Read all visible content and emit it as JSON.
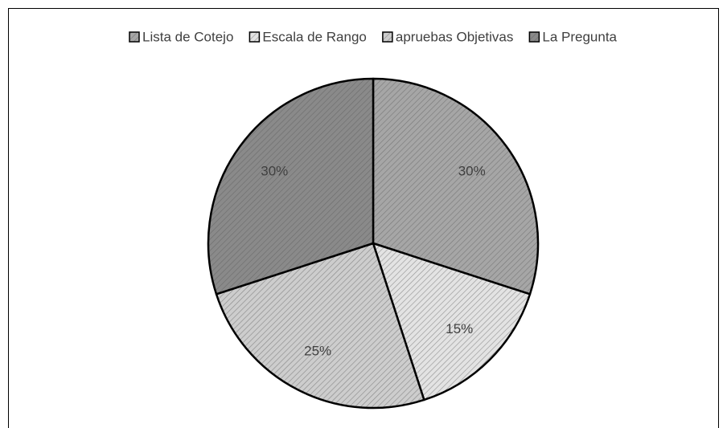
{
  "chart_data": {
    "type": "pie",
    "categories": [
      "Lista de Cotejo",
      "Escala de Rango",
      "apruebas Objetivas",
      "La Pregunta"
    ],
    "values": [
      30,
      15,
      25,
      30
    ],
    "value_labels": [
      "30%",
      "15%",
      "25%",
      "30%"
    ],
    "colors": [
      "#a6a6a6",
      "#e3e3e3",
      "#cdcdcd",
      "#8a8a8a"
    ],
    "legend": "top"
  }
}
